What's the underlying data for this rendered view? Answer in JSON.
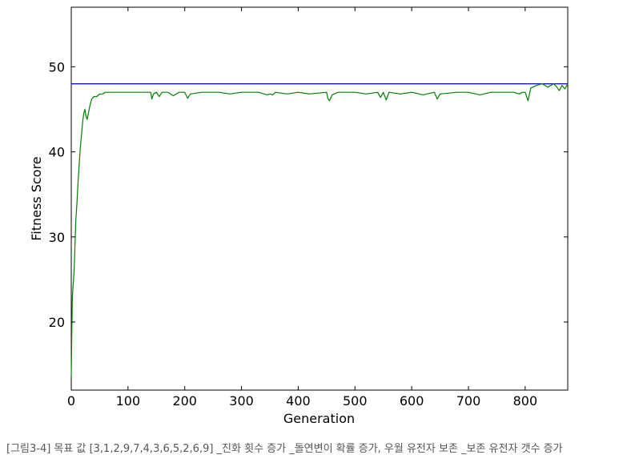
{
  "caption": "[그림3-4] 목표 값 [3,1,2,9,7,4,3,6,5,2,6,9] _진화 횟수 증가 _돌연변이 확률 증가, 우월 유전자 보존 _보존 유전자 갯수 증가",
  "chart_data": {
    "type": "line",
    "title": "",
    "xlabel": "Generation",
    "ylabel": "Fitness Score",
    "xlim": [
      0,
      875
    ],
    "ylim": [
      12,
      57
    ],
    "x_ticks": [
      0,
      100,
      200,
      300,
      400,
      500,
      600,
      700,
      800
    ],
    "y_ticks": [
      20,
      30,
      40,
      50
    ],
    "grid": false,
    "legend": "none",
    "colors": {
      "target": "#0000cc",
      "fitness": "#008000"
    },
    "series": [
      {
        "name": "",
        "role": "target",
        "x": [
          0,
          875
        ],
        "y": [
          48,
          48
        ]
      },
      {
        "name": "",
        "role": "fitness",
        "x": [
          0,
          1,
          2,
          3,
          4,
          5,
          6,
          7,
          8,
          10,
          12,
          14,
          16,
          18,
          20,
          22,
          24,
          26,
          28,
          30,
          33,
          36,
          40,
          45,
          50,
          55,
          60,
          65,
          70,
          80,
          100,
          130,
          140,
          142,
          145,
          150,
          155,
          160,
          170,
          180,
          190,
          200,
          205,
          210,
          230,
          260,
          280,
          300,
          330,
          345,
          350,
          355,
          360,
          380,
          400,
          420,
          450,
          452,
          455,
          460,
          470,
          500,
          520,
          540,
          545,
          550,
          555,
          560,
          580,
          600,
          620,
          640,
          645,
          650,
          680,
          700,
          720,
          740,
          780,
          790,
          795,
          800,
          805,
          810,
          820,
          830,
          840,
          850,
          855,
          860,
          865,
          870,
          875
        ],
        "y": [
          13.5,
          19,
          23,
          24,
          25,
          26,
          28,
          30,
          32,
          34,
          36.5,
          38.5,
          40.5,
          42,
          43.5,
          44.5,
          45,
          44.2,
          43.8,
          44.5,
          45.5,
          46.2,
          46.5,
          46.5,
          46.8,
          46.8,
          47,
          47,
          47,
          47,
          47,
          47,
          47,
          46.2,
          46.8,
          47,
          46.5,
          47,
          47,
          46.6,
          47,
          47,
          46.3,
          46.8,
          47,
          47,
          46.8,
          47,
          47,
          46.7,
          46.8,
          46.7,
          47,
          46.8,
          47,
          46.8,
          47,
          46.3,
          46,
          46.7,
          47,
          47,
          46.8,
          47,
          46.4,
          47,
          46.1,
          47,
          46.8,
          47,
          46.7,
          47,
          46.2,
          46.8,
          47,
          47,
          46.7,
          47,
          47,
          46.8,
          47,
          47,
          46,
          47.5,
          47.8,
          48,
          47.6,
          48,
          47.7,
          47.2,
          47.8,
          47.4,
          48
        ]
      }
    ]
  }
}
